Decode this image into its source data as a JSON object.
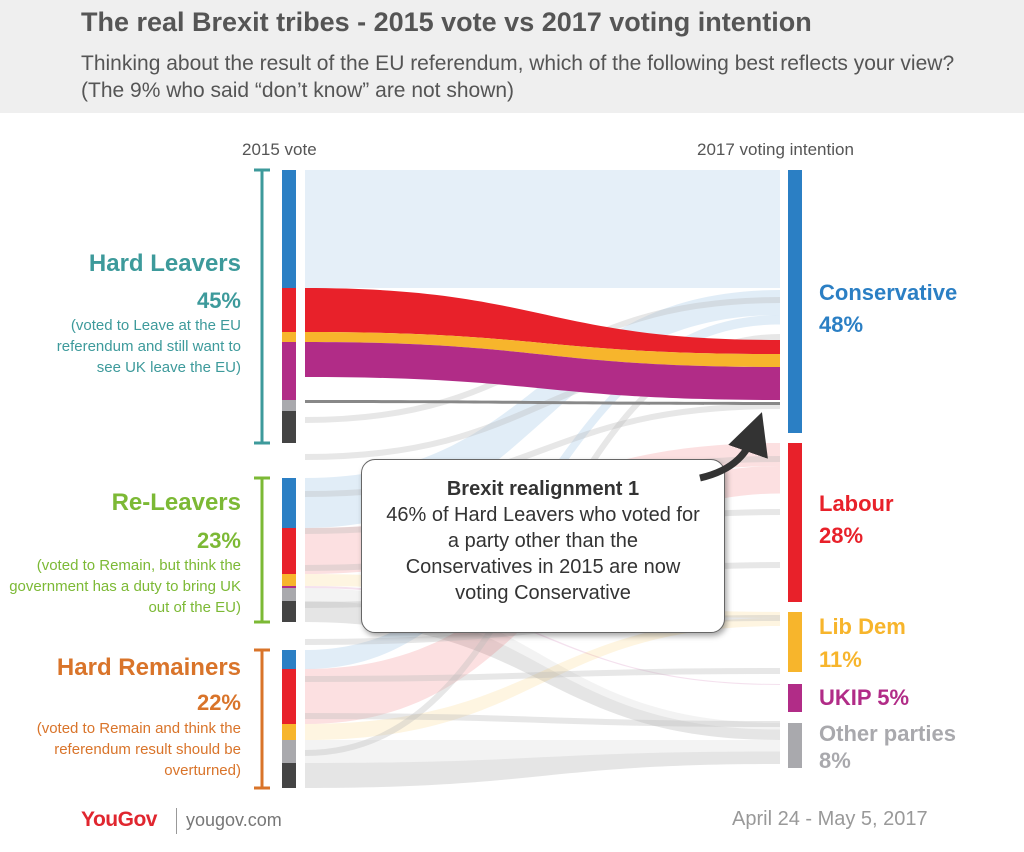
{
  "title": "The real Brexit tribes - 2015 vote vs 2017 voting intention",
  "subtitle": "Thinking about the result of the EU referendum, which of the following best reflects your view? (The 9% who said “don’t know” are not shown)",
  "left_header": "2015 vote",
  "right_header": "2017 voting intention",
  "tribes": [
    {
      "name": "Hard Leavers",
      "pct": "45%",
      "desc": "(voted to Leave at the EU referendum and still want to see UK leave the EU)",
      "color": "#3d9a9b"
    },
    {
      "name": "Re-Leavers",
      "pct": "23%",
      "desc": "(voted to Remain, but think the government has a duty to bring UK out of the EU)",
      "color": "#7cb935"
    },
    {
      "name": "Hard Remainers",
      "pct": "22%",
      "desc": "(voted to Remain and think the referendum result should be overturned)",
      "color": "#d9742a"
    }
  ],
  "parties": [
    {
      "name": "Conservative",
      "pct": "48%",
      "color": "#2b7fc4"
    },
    {
      "name": "Labour",
      "pct": "28%",
      "color": "#e8212a"
    },
    {
      "name": "Lib Dem",
      "pct": "11%",
      "color": "#f7b52c"
    },
    {
      "name": "UKIP",
      "pct": "5%",
      "color": "#b12c87"
    },
    {
      "name": "Other parties",
      "pct": "8%",
      "color": "#a9a9ad"
    }
  ],
  "callout": {
    "title": "Brexit realignment 1",
    "text": "46% of Hard Leavers who voted for a party other than the Conservatives in 2015 are now voting Conservative"
  },
  "footer": {
    "brand": "YouGov",
    "site": "yougov.com",
    "date": "April 24 - May 5, 2017"
  },
  "chart_data": {
    "type": "sankey",
    "title": "The real Brexit tribes - 2015 vote vs 2017 voting intention",
    "left_groups": [
      "Hard Leavers",
      "Re-Leavers",
      "Hard Remainers"
    ],
    "left_group_shares": [
      45,
      23,
      22
    ],
    "right_nodes": [
      "Conservative",
      "Labour",
      "Lib Dem",
      "UKIP",
      "Other parties"
    ],
    "right_node_shares": [
      48,
      28,
      11,
      5,
      8
    ],
    "highlight": "Hard Leavers who voted Labour, Lib Dem, UKIP or Other in 2015 flowing to Conservative"
  }
}
